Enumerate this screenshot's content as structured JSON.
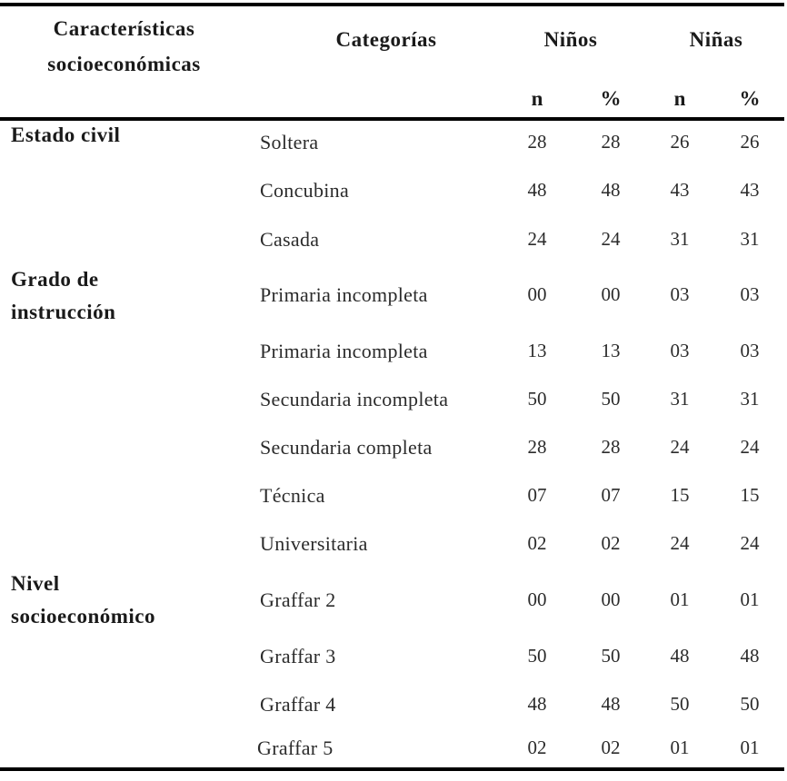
{
  "header": {
    "characteristics": [
      "Características",
      "socioeconómicas"
    ],
    "categories": "Categorías",
    "ninos": "Niños",
    "ninas": "Niñas",
    "sub": [
      "n",
      "%",
      "n",
      "%"
    ]
  },
  "groups": [
    {
      "label": [
        "Estado civil"
      ]
    },
    {
      "label": [
        "Grado de",
        "instrucción"
      ]
    },
    {
      "label": [
        "Nivel",
        "socioeconómico"
      ]
    }
  ],
  "rows": [
    {
      "cat": "Soltera",
      "n1": "28",
      "p1": "28",
      "n2": "26",
      "p2": "26"
    },
    {
      "cat": "Concubina",
      "n1": "48",
      "p1": "48",
      "n2": "43",
      "p2": "43"
    },
    {
      "cat": "Casada",
      "n1": "24",
      "p1": "24",
      "n2": "31",
      "p2": "31"
    },
    {
      "cat": "Primaria incompleta",
      "n1": "00",
      "p1": "00",
      "n2": "03",
      "p2": "03"
    },
    {
      "cat": "Primaria incompleta",
      "n1": "13",
      "p1": "13",
      "n2": "03",
      "p2": "03"
    },
    {
      "cat": "Secundaria incompleta",
      "n1": "50",
      "p1": "50",
      "n2": "31",
      "p2": "31"
    },
    {
      "cat": "Secundaria completa",
      "n1": "28",
      "p1": "28",
      "n2": "24",
      "p2": "24"
    },
    {
      "cat": "Técnica",
      "n1": "07",
      "p1": "07",
      "n2": "15",
      "p2": "15"
    },
    {
      "cat": "Universitaria",
      "n1": "02",
      "p1": "02",
      "n2": "24",
      "p2": "24"
    },
    {
      "cat": "Graffar 2",
      "n1": "00",
      "p1": "00",
      "n2": "01",
      "p2": "01"
    },
    {
      "cat": "Graffar 3",
      "n1": "50",
      "p1": "50",
      "n2": "48",
      "p2": "48"
    },
    {
      "cat": "Graffar 4",
      "n1": "48",
      "p1": "48",
      "n2": "50",
      "p2": "50"
    },
    {
      "cat": "Graffar 5",
      "n1": "02",
      "p1": "02",
      "n2": "01",
      "p2": "01"
    }
  ]
}
